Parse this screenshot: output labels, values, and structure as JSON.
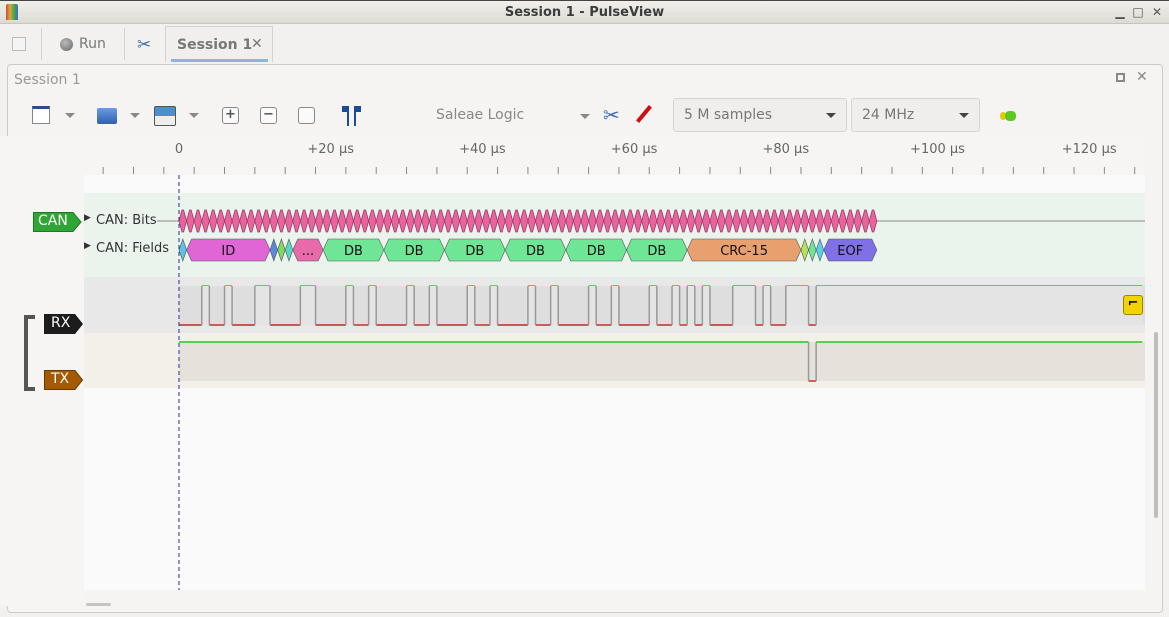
{
  "window": {
    "title": "Session 1 - PulseView",
    "minimize": "▁",
    "maximize": "□",
    "close": "✕"
  },
  "tabbar": {
    "run_label": "Run",
    "session_tab": "Session 1",
    "close": "✕"
  },
  "session": {
    "title": "Session 1",
    "restore": "□",
    "close": "✕"
  },
  "toolbar": {
    "device": "Saleae Logic",
    "samples": "5 M samples",
    "samplerate": "24 MHz"
  },
  "ruler": {
    "ticks": [
      "0",
      "+20 µs",
      "+40 µs",
      "+60 µs",
      "+80 µs",
      "+100 µs",
      "+120 µs"
    ]
  },
  "traces": {
    "decoder": {
      "label": "CAN",
      "rows": [
        "CAN: Bits",
        "CAN: Fields"
      ],
      "color": "#2ea534",
      "bit_count": 92,
      "bit_color": "#e8649c",
      "fields": [
        {
          "label": "",
          "start": 0,
          "end": 1,
          "color": "#5bc2e4"
        },
        {
          "label": "ID",
          "start": 1,
          "end": 12,
          "color": "#e066d6"
        },
        {
          "label": "",
          "start": 12,
          "end": 13,
          "color": "#5a88e0"
        },
        {
          "label": "",
          "start": 13,
          "end": 14,
          "color": "#80d85e"
        },
        {
          "label": "",
          "start": 14,
          "end": 15,
          "color": "#5ad6c6"
        },
        {
          "label": "...",
          "start": 15,
          "end": 19,
          "color": "#e86aaa"
        },
        {
          "label": "DB",
          "start": 19,
          "end": 27,
          "color": "#6ee696"
        },
        {
          "label": "DB",
          "start": 27,
          "end": 35,
          "color": "#6ee696"
        },
        {
          "label": "DB",
          "start": 35,
          "end": 43,
          "color": "#6ee696"
        },
        {
          "label": "DB",
          "start": 43,
          "end": 51,
          "color": "#6ee696"
        },
        {
          "label": "DB",
          "start": 51,
          "end": 59,
          "color": "#6ee696"
        },
        {
          "label": "DB",
          "start": 59,
          "end": 67,
          "color": "#6ee696"
        },
        {
          "label": "CRC-15",
          "start": 67,
          "end": 82,
          "color": "#e8a06e"
        },
        {
          "label": "",
          "start": 82,
          "end": 83,
          "color": "#b8e060"
        },
        {
          "label": "",
          "start": 83,
          "end": 84,
          "color": "#6ee696"
        },
        {
          "label": "",
          "start": 84,
          "end": 85,
          "color": "#5ad0e8"
        },
        {
          "label": "EOF",
          "start": 85,
          "end": 92,
          "color": "#8070e8"
        }
      ]
    },
    "rx": {
      "label": "RX",
      "color": "#1c1c1c",
      "high_intervals_us": [
        [
          3,
          4
        ],
        [
          6,
          7
        ],
        [
          10,
          12
        ],
        [
          16,
          18
        ],
        [
          22,
          23
        ],
        [
          25,
          26
        ],
        [
          30,
          31
        ],
        [
          33,
          34
        ],
        [
          38,
          39
        ],
        [
          41,
          42
        ],
        [
          46,
          47
        ],
        [
          49,
          50
        ],
        [
          54,
          55
        ],
        [
          57,
          58
        ],
        [
          62,
          63
        ],
        [
          65,
          66
        ],
        [
          67,
          68
        ],
        [
          69,
          70
        ],
        [
          73,
          76
        ],
        [
          77,
          78
        ],
        [
          80,
          83
        ],
        [
          84,
          127
        ]
      ]
    },
    "tx": {
      "label": "TX",
      "color": "#a35a00",
      "low_intervals_us": [
        [
          83,
          84
        ]
      ]
    },
    "colors": {
      "high": "#00c000",
      "low": "#c00000"
    }
  }
}
